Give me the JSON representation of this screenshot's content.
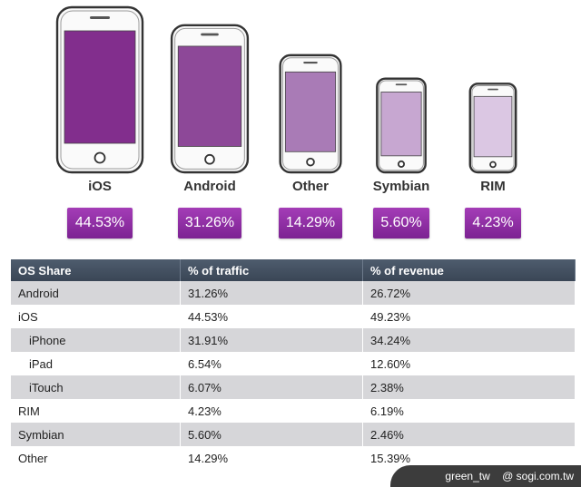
{
  "chart_data": {
    "type": "bar",
    "categories": [
      "iOS",
      "Android",
      "Other",
      "Symbian",
      "RIM"
    ],
    "values": [
      44.53,
      31.26,
      14.29,
      5.6,
      4.23
    ],
    "value_labels": [
      "44.53%",
      "31.26%",
      "14.29%",
      "5.60%",
      "4.23%"
    ],
    "screen_colors": [
      "#822e8d",
      "#8d4898",
      "#a97bb6",
      "#c7a7d1",
      "#dbc7e3"
    ]
  },
  "table": {
    "headers": [
      "OS Share",
      "% of traffic",
      "% of revenue"
    ],
    "rows": [
      {
        "os": "Android",
        "traffic": "31.26%",
        "revenue": "26.72%"
      },
      {
        "os": "iOS",
        "traffic": "44.53%",
        "revenue": "49.23%"
      },
      {
        "os": "iPhone",
        "traffic": "31.91%",
        "revenue": "34.24%"
      },
      {
        "os": "iPad",
        "traffic": "6.54%",
        "revenue": "12.60%"
      },
      {
        "os": "iTouch",
        "traffic": "6.07%",
        "revenue": "2.38%"
      },
      {
        "os": "RIM",
        "traffic": "4.23%",
        "revenue": "6.19%"
      },
      {
        "os": "Symbian",
        "traffic": "5.60%",
        "revenue": "2.46%"
      },
      {
        "os": "Other",
        "traffic": "14.29%",
        "revenue": "15.39%"
      }
    ]
  },
  "watermark": {
    "author": "green_tw",
    "site": "@ sogi.com.tw"
  }
}
